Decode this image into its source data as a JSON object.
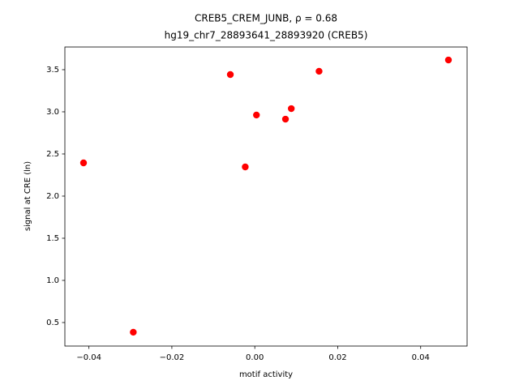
{
  "chart_data": {
    "type": "scatter",
    "title": "CREB5_CREM_JUNB, ρ = 0.68",
    "subtitle": "hg19_chr7_28893641_28893920 (CREB5)",
    "x_label": "motif activity",
    "y_label": "signal at CRE (ln)",
    "color": "#ff0000",
    "x": [
      -0.0413,
      -0.0293,
      -0.0059,
      -0.0023,
      0.0004,
      0.0074,
      0.0088,
      0.0155,
      0.0467
    ],
    "values": [
      2.394,
      0.385,
      3.442,
      2.346,
      2.962,
      2.913,
      3.038,
      3.481,
      3.615
    ],
    "xlim": [
      -0.0458,
      0.0512
    ],
    "ylim": [
      0.221,
      3.769
    ],
    "xticks": [
      {
        "value": -0.04,
        "label": "−0.04"
      },
      {
        "value": -0.02,
        "label": "−0.02"
      },
      {
        "value": 0,
        "label": "0.00"
      },
      0.02,
      0.04
    ],
    "yticks": [
      0.5,
      {
        "value": 1,
        "label": "1.0"
      },
      1.5,
      {
        "value": 2,
        "label": "2.0"
      },
      2.5,
      {
        "value": 3,
        "label": "3.0"
      },
      3.5
    ],
    "grid": false
  }
}
